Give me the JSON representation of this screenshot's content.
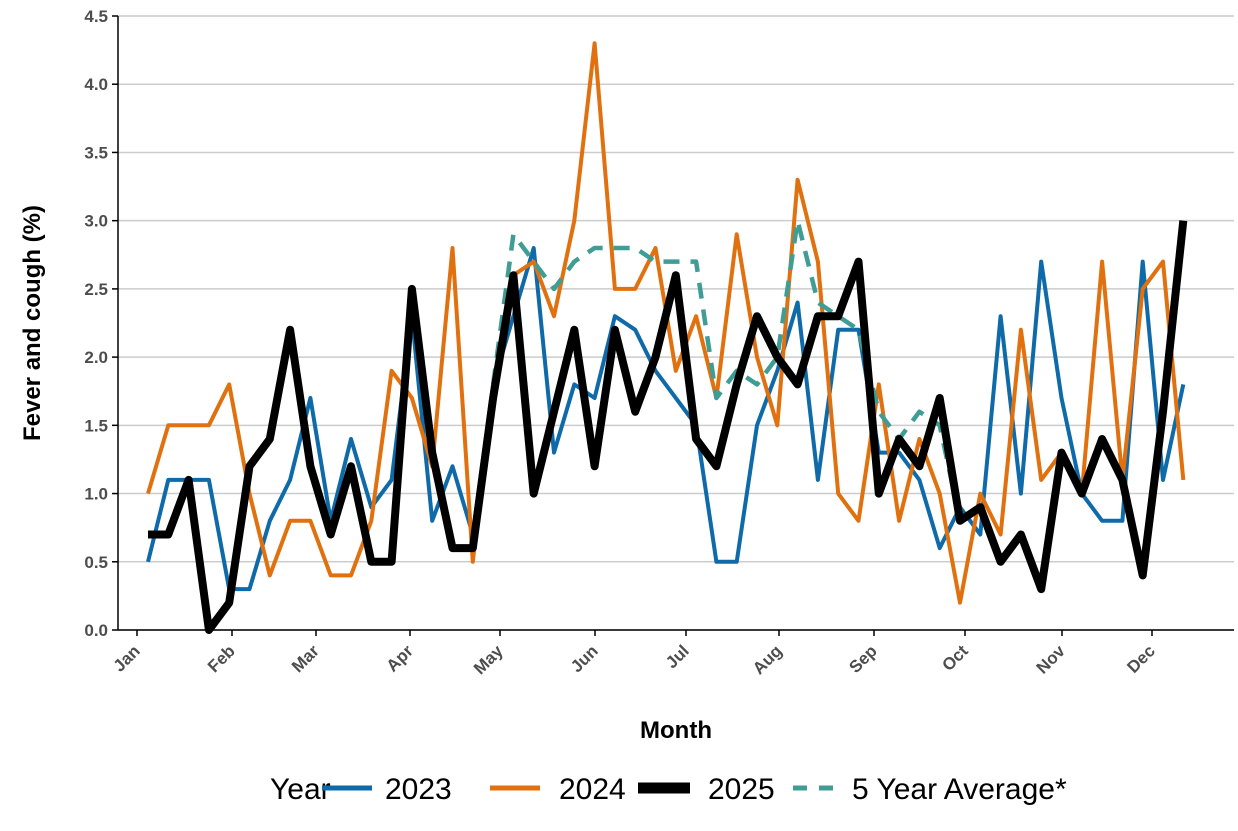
{
  "chart_data": {
    "type": "line",
    "xlabel": "Month",
    "ylabel": "Fever and cough (%)",
    "ylim": [
      0,
      4.5
    ],
    "yticks": [
      "0.0",
      "0.5",
      "1.0",
      "1.5",
      "2.0",
      "2.5",
      "3.0",
      "3.5",
      "4.0",
      "4.5"
    ],
    "months": [
      "Jan",
      "Feb",
      "Mar",
      "Apr",
      "May",
      "Jun",
      "Jul",
      "Aug",
      "Sep",
      "Oct",
      "Nov",
      "Dec"
    ],
    "grid": "horizontal",
    "legend_position": "bottom",
    "legend_title": "Year",
    "series": [
      {
        "name": "2023",
        "color": "#0e6aa8",
        "style": "solid",
        "values": [
          0.5,
          1.1,
          1.1,
          1.1,
          0.3,
          0.3,
          0.8,
          1.1,
          1.7,
          0.8,
          1.4,
          0.9,
          1.1,
          2.3,
          0.8,
          1.2,
          0.7,
          1.8,
          2.3,
          2.8,
          1.3,
          1.8,
          1.7,
          2.3,
          2.2,
          1.9,
          1.7,
          1.5,
          0.5,
          0.5,
          1.5,
          1.9,
          2.4,
          1.1,
          2.2,
          2.2,
          1.3,
          1.3,
          1.1,
          0.6,
          0.9,
          0.7,
          2.3,
          1.0,
          2.7,
          1.7,
          1.0,
          0.8,
          0.8,
          2.7,
          1.1,
          1.8
        ]
      },
      {
        "name": "2024",
        "color": "#e1700e",
        "style": "solid",
        "values": [
          1.0,
          1.5,
          1.5,
          1.5,
          1.8,
          1.0,
          0.4,
          0.8,
          0.8,
          0.4,
          0.4,
          0.8,
          1.9,
          1.7,
          1.2,
          2.8,
          0.5,
          1.8,
          2.6,
          2.7,
          2.3,
          3.0,
          4.3,
          2.5,
          2.5,
          2.8,
          1.9,
          2.3,
          1.7,
          2.9,
          2.0,
          1.5,
          3.3,
          2.7,
          1.0,
          0.8,
          1.8,
          0.8,
          1.4,
          1.0,
          0.2,
          1.0,
          0.7,
          2.2,
          1.1,
          1.3,
          1.0,
          2.7,
          1.1,
          2.5,
          2.7,
          1.1
        ]
      },
      {
        "name": "2025",
        "color": "#000000",
        "style": "solid",
        "values": [
          0.7,
          0.7,
          1.1,
          0.0,
          0.2,
          1.2,
          1.4,
          2.2,
          1.2,
          0.7,
          1.2,
          0.5,
          0.5,
          2.5,
          1.3,
          0.6,
          0.6,
          1.7,
          2.6,
          1.0,
          1.6,
          2.2,
          1.2,
          2.2,
          1.6,
          2.0,
          2.6,
          1.4,
          1.2,
          1.8,
          2.3,
          2.0,
          1.8,
          2.3,
          2.3,
          2.7,
          1.0,
          1.4,
          1.2,
          1.7,
          0.8,
          0.9,
          0.5,
          0.7,
          0.3,
          1.3,
          1.0,
          1.4,
          1.1,
          0.4,
          1.6,
          3.0
        ]
      },
      {
        "name": "5 Year Average*",
        "color": "#3f9d95",
        "style": "dashed",
        "x_start": 17,
        "values": [
          1.8,
          2.9,
          2.7,
          2.5,
          2.7,
          2.8,
          2.8,
          2.8,
          2.7,
          2.7,
          2.7,
          1.7,
          1.9,
          1.8,
          2.0,
          3.0,
          2.4,
          2.3,
          2.2,
          1.6,
          1.4,
          1.6,
          1.5,
          0.8
        ]
      }
    ]
  }
}
